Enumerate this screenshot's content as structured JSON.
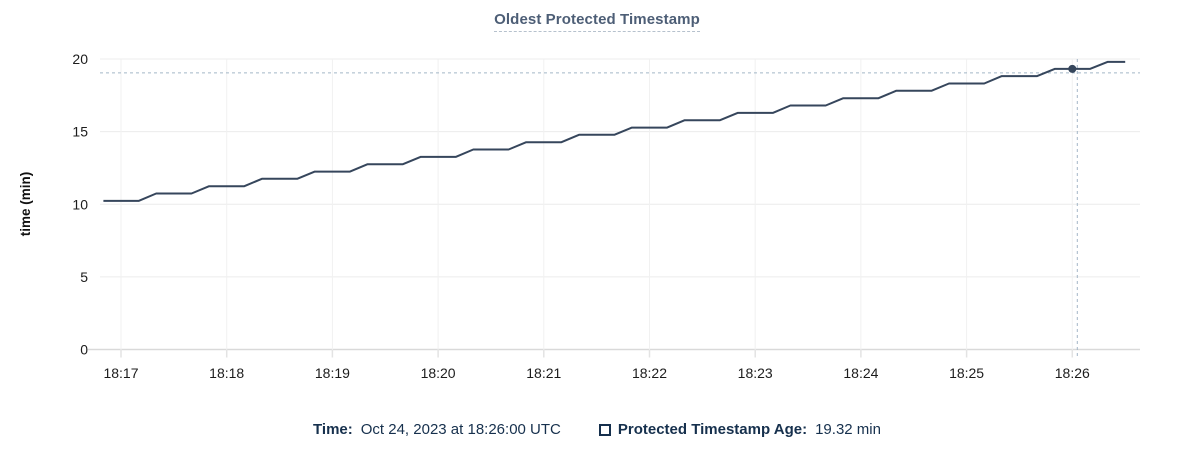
{
  "title": "Oldest Protected Timestamp",
  "colors": {
    "series": "#36465c",
    "crosshair": "#a3b6c6",
    "grid": "#ececec",
    "grid_vertical": "#f1f1f1",
    "axis_line": "#d9d9d9",
    "tick_mark": "#e3e3e3",
    "tick_text": "#1c1c1c",
    "axis_title_text": "#111111",
    "title_text": "#4d5e76",
    "title_underline": "#b6c1cd",
    "legend_text": "#16304d"
  },
  "tooltip": {
    "time_label": "Time:",
    "time_value": "Oct 24, 2023 at 18:26:00 UTC",
    "series_label": "Protected Timestamp Age:",
    "series_value": "19.32 min"
  },
  "chart_data": {
    "type": "line",
    "title": "Oldest Protected Timestamp",
    "xlabel": "",
    "ylabel": "time (min)",
    "ylim": [
      0,
      20
    ],
    "y_ticks": [
      0,
      5,
      10,
      15,
      20
    ],
    "x_ticks": [
      "18:17",
      "18:18",
      "18:19",
      "18:20",
      "18:21",
      "18:22",
      "18:23",
      "18:24",
      "18:25",
      "18:26"
    ],
    "grid": true,
    "legend_position": "bottom",
    "highlight": {
      "x": "18:26:00",
      "y": 19.32
    },
    "series": [
      {
        "name": "Protected Timestamp Age",
        "unit": "min",
        "points": [
          [
            "18:16:50",
            10.23
          ],
          [
            "18:17:00",
            10.23
          ],
          [
            "18:17:10",
            10.23
          ],
          [
            "18:17:20",
            10.74
          ],
          [
            "18:17:30",
            10.74
          ],
          [
            "18:17:40",
            10.74
          ],
          [
            "18:17:50",
            11.24
          ],
          [
            "18:18:00",
            11.24
          ],
          [
            "18:18:10",
            11.24
          ],
          [
            "18:18:20",
            11.75
          ],
          [
            "18:18:30",
            11.75
          ],
          [
            "18:18:40",
            11.75
          ],
          [
            "18:18:50",
            12.25
          ],
          [
            "18:19:00",
            12.25
          ],
          [
            "18:19:10",
            12.25
          ],
          [
            "18:19:20",
            12.76
          ],
          [
            "18:19:30",
            12.76
          ],
          [
            "18:19:40",
            12.76
          ],
          [
            "18:19:50",
            13.26
          ],
          [
            "18:20:00",
            13.26
          ],
          [
            "18:20:10",
            13.26
          ],
          [
            "18:20:20",
            13.77
          ],
          [
            "18:20:30",
            13.77
          ],
          [
            "18:20:40",
            13.77
          ],
          [
            "18:20:50",
            14.27
          ],
          [
            "18:21:00",
            14.27
          ],
          [
            "18:21:10",
            14.27
          ],
          [
            "18:21:20",
            14.78
          ],
          [
            "18:21:30",
            14.78
          ],
          [
            "18:21:40",
            14.78
          ],
          [
            "18:21:50",
            15.28
          ],
          [
            "18:22:00",
            15.28
          ],
          [
            "18:22:10",
            15.28
          ],
          [
            "18:22:20",
            15.79
          ],
          [
            "18:22:30",
            15.79
          ],
          [
            "18:22:40",
            15.79
          ],
          [
            "18:22:50",
            16.29
          ],
          [
            "18:23:00",
            16.29
          ],
          [
            "18:23:10",
            16.29
          ],
          [
            "18:23:20",
            16.8
          ],
          [
            "18:23:30",
            16.8
          ],
          [
            "18:23:40",
            16.8
          ],
          [
            "18:23:50",
            17.3
          ],
          [
            "18:24:00",
            17.3
          ],
          [
            "18:24:10",
            17.3
          ],
          [
            "18:24:20",
            17.81
          ],
          [
            "18:24:30",
            17.81
          ],
          [
            "18:24:40",
            17.81
          ],
          [
            "18:24:50",
            18.31
          ],
          [
            "18:25:00",
            18.31
          ],
          [
            "18:25:10",
            18.31
          ],
          [
            "18:25:20",
            18.82
          ],
          [
            "18:25:30",
            18.82
          ],
          [
            "18:25:40",
            18.82
          ],
          [
            "18:25:50",
            19.32
          ],
          [
            "18:26:00",
            19.32
          ],
          [
            "18:26:10",
            19.32
          ],
          [
            "18:26:20",
            19.8
          ],
          [
            "18:26:30",
            19.8
          ]
        ]
      }
    ]
  }
}
